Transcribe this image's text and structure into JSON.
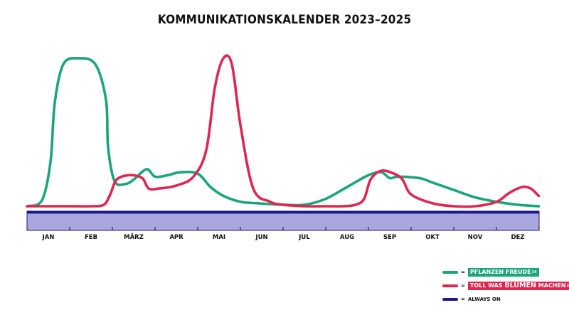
{
  "colors": {
    "green": "#1aa57c",
    "red": "#e0264f",
    "navy": "#1c1884",
    "band": "#a9a5dd",
    "band_border": "#1c1884"
  },
  "chart_data": {
    "type": "line",
    "title": "KOMMUNIKATIONSKALENDER 2023–2025",
    "categories": [
      "JAN",
      "FEB",
      "MÄRZ",
      "APR",
      "MAI",
      "JUN",
      "JUL",
      "AUG",
      "SEP",
      "OKT",
      "NOV",
      "DEZ"
    ],
    "x_range": [
      0,
      12
    ],
    "y_range": [
      0,
      100
    ],
    "grid": false,
    "legend_position": "bottom-right",
    "series": [
      {
        "name": "PFLANZEN FREUDE",
        "color": "#1aa57c",
        "x": [
          0,
          0.35,
          0.55,
          0.65,
          0.85,
          1.2,
          1.6,
          1.85,
          1.9,
          2.05,
          2.3,
          2.5,
          2.8,
          3.0,
          3.3,
          3.6,
          4.0,
          4.3,
          4.6,
          5.0,
          5.4,
          6.0,
          6.5,
          7.0,
          7.5,
          8.0,
          8.3,
          8.5,
          8.7,
          9.2,
          9.5,
          10.0,
          10.5,
          11.0,
          11.5,
          11.99
        ],
        "y": [
          0,
          4,
          30,
          70,
          96,
          100,
          96,
          72,
          40,
          17,
          15,
          18,
          25,
          20,
          21,
          23,
          22,
          13,
          7,
          3,
          2,
          1,
          1,
          5,
          13,
          21,
          23,
          19,
          20,
          19,
          16,
          11,
          6,
          3,
          1,
          0
        ]
      },
      {
        "name": "TOLL WAS BLUMEN MACHEN",
        "color": "#e0264f",
        "x": [
          0,
          0.5,
          1.0,
          1.5,
          1.8,
          1.95,
          2.1,
          2.4,
          2.7,
          2.85,
          3.1,
          3.5,
          3.9,
          4.2,
          4.4,
          4.6,
          4.8,
          5.0,
          5.3,
          5.7,
          6.0,
          6.5,
          7.0,
          7.4,
          7.7,
          7.9,
          8.05,
          8.3,
          8.6,
          8.8,
          9.0,
          9.5,
          10.0,
          10.5,
          11.0,
          11.3,
          11.6,
          11.8,
          11.99
        ],
        "y": [
          0,
          0,
          0,
          0,
          1,
          8,
          18,
          21,
          19,
          12,
          12,
          14,
          20,
          38,
          80,
          100,
          96,
          55,
          12,
          3,
          1,
          0,
          0,
          0,
          1,
          5,
          18,
          24,
          22,
          18,
          8,
          2,
          0,
          0,
          3,
          9,
          13,
          12,
          7
        ]
      },
      {
        "name": "ALWAYS ON",
        "color": "#1c1884",
        "x": [
          0,
          12
        ],
        "y": [
          -4,
          -4
        ]
      }
    ]
  },
  "legend": [
    {
      "series": "PFLANZEN FREUDE",
      "eq": "=",
      "text_a": "PFLANZEN FREUDE",
      "text_b": "",
      "text_c": "",
      "sup": "24"
    },
    {
      "series": "TOLL WAS BLUMEN MACHEN",
      "eq": "=",
      "text_a": "TOLL WAS ",
      "text_b": "BLUMEN",
      "text_c": " MACHEN",
      "sup": "24"
    },
    {
      "series": "ALWAYS ON",
      "eq": "=",
      "text": "ALWAYS ON"
    }
  ]
}
